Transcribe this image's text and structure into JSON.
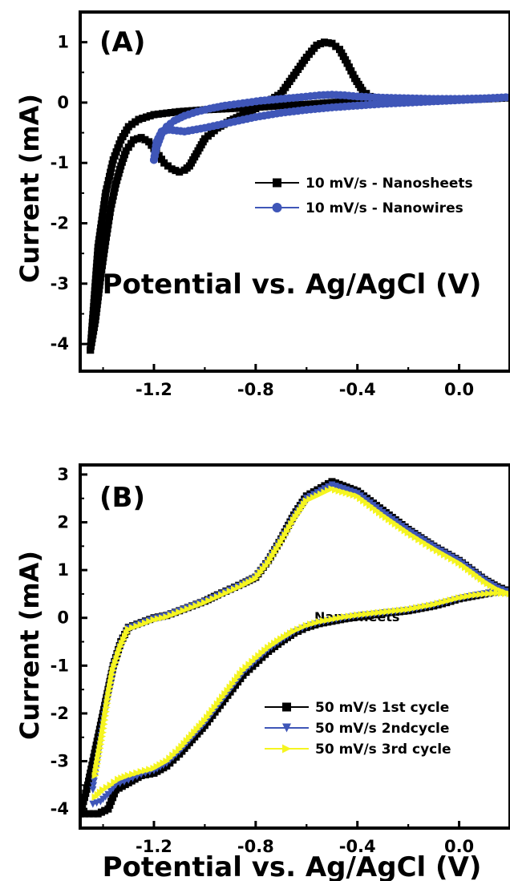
{
  "chart_data": [
    {
      "type": "line",
      "panel_label": "(A)",
      "xlabel": "Potential vs. Ag/AgCl (V)",
      "ylabel": "Current (mA)",
      "xlim": [
        -1.49,
        0.2
      ],
      "ylim": [
        -4.45,
        1.5
      ],
      "xticks": [
        -1.2,
        -0.8,
        -0.4,
        0.0
      ],
      "xtick_labels": [
        "-1.2",
        "-0.8",
        "-0.4",
        "0.0"
      ],
      "yticks": [
        -4,
        -3,
        -2,
        -1,
        0,
        1
      ],
      "ytick_labels": [
        "-4",
        "-3",
        "-2",
        "-1",
        "0",
        "1"
      ],
      "grid": false,
      "legend_position": "middle-right",
      "series": [
        {
          "name": "10 mV/s - Nanosheets",
          "color": "#000000",
          "marker": "square",
          "x": [
            -1.45,
            -1.43,
            -1.41,
            -1.39,
            -1.37,
            -1.35,
            -1.33,
            -1.31,
            -1.28,
            -1.25,
            -1.22,
            -1.19,
            -1.16,
            -1.13,
            -1.1,
            -1.08,
            -1.06,
            -1.04,
            -1.02,
            -1.0,
            -0.95,
            -0.9,
            -0.85,
            -0.8,
            -0.75,
            -0.7,
            -0.65,
            -0.6,
            -0.56,
            -0.53,
            -0.5,
            -0.47,
            -0.44,
            -0.41,
            -0.38,
            -0.35,
            -0.3,
            -0.25,
            -0.2,
            -0.1,
            0.0,
            0.1,
            0.2,
            0.1,
            0.0,
            -0.1,
            -0.2,
            -0.3,
            -0.4,
            -0.5,
            -0.6,
            -0.7,
            -0.8,
            -0.9,
            -1.0,
            -1.1,
            -1.2,
            -1.26,
            -1.3,
            -1.33,
            -1.36,
            -1.39,
            -1.42,
            -1.45
          ],
          "y": [
            -4.1,
            -3.6,
            -2.9,
            -2.3,
            -1.75,
            -1.35,
            -1.05,
            -0.8,
            -0.62,
            -0.58,
            -0.65,
            -0.82,
            -1.0,
            -1.1,
            -1.15,
            -1.12,
            -1.05,
            -0.9,
            -0.75,
            -0.6,
            -0.42,
            -0.3,
            -0.2,
            -0.1,
            0.02,
            0.15,
            0.45,
            0.75,
            0.95,
            1.0,
            0.98,
            0.88,
            0.65,
            0.4,
            0.2,
            0.1,
            0.05,
            0.04,
            0.04,
            0.05,
            0.05,
            0.06,
            0.08,
            0.06,
            0.05,
            0.04,
            0.04,
            0.03,
            0.02,
            0.0,
            -0.03,
            -0.05,
            -0.08,
            -0.1,
            -0.12,
            -0.15,
            -0.2,
            -0.28,
            -0.4,
            -0.62,
            -0.95,
            -1.5,
            -2.4,
            -4.1
          ]
        },
        {
          "name": "10 mV/s - Nanowires",
          "color": "#3f56b8",
          "marker": "circle",
          "x": [
            -1.2,
            -1.19,
            -1.17,
            -1.15,
            -1.12,
            -1.08,
            -1.03,
            -0.98,
            -0.92,
            -0.85,
            -0.78,
            -0.7,
            -0.62,
            -0.55,
            -0.5,
            -0.45,
            -0.4,
            -0.3,
            -0.2,
            -0.1,
            0.0,
            0.1,
            0.2,
            0.1,
            0.0,
            -0.1,
            -0.2,
            -0.3,
            -0.4,
            -0.5,
            -0.6,
            -0.7,
            -0.8,
            -0.9,
            -1.0,
            -1.08,
            -1.14,
            -1.17,
            -1.19,
            -1.2
          ],
          "y": [
            -0.95,
            -0.75,
            -0.52,
            -0.4,
            -0.3,
            -0.22,
            -0.15,
            -0.1,
            -0.05,
            -0.01,
            0.03,
            0.06,
            0.09,
            0.12,
            0.13,
            0.12,
            0.1,
            0.08,
            0.07,
            0.06,
            0.06,
            0.07,
            0.09,
            0.06,
            0.04,
            0.02,
            0.0,
            -0.02,
            -0.05,
            -0.08,
            -0.12,
            -0.17,
            -0.24,
            -0.33,
            -0.42,
            -0.48,
            -0.45,
            -0.48,
            -0.65,
            -0.95
          ]
        }
      ]
    },
    {
      "type": "line",
      "panel_label": "(B)",
      "xlabel": "Potential vs. Ag/AgCl (V)",
      "ylabel": "Current (mA)",
      "annotation": "Nanosheets",
      "xlim": [
        -1.49,
        0.2
      ],
      "ylim": [
        -4.4,
        3.2
      ],
      "xticks": [
        -1.2,
        -0.8,
        -0.4,
        0.0
      ],
      "xtick_labels": [
        "-1.2",
        "-0.8",
        "-0.4",
        "0.0"
      ],
      "yticks": [
        -4,
        -3,
        -2,
        -1,
        0,
        1,
        2,
        3
      ],
      "ytick_labels": [
        "-4",
        "-3",
        "-2",
        "-1",
        "0",
        "1",
        "2",
        "3"
      ],
      "grid": false,
      "legend_position": "bottom-right",
      "series": [
        {
          "name": "50 mV/s 1st cycle",
          "color": "#000000",
          "marker": "square",
          "x": [
            -1.49,
            -1.42,
            -1.38,
            -1.35,
            -1.3,
            -1.25,
            -1.2,
            -1.15,
            -1.1,
            -1.05,
            -1.0,
            -0.95,
            -0.9,
            -0.85,
            -0.8,
            -0.75,
            -0.7,
            -0.65,
            -0.6,
            -0.55,
            -0.5,
            -0.45,
            -0.4,
            -0.35,
            -0.3,
            -0.25,
            -0.2,
            -0.15,
            -0.1,
            -0.05,
            0.0,
            0.05,
            0.1,
            0.15,
            0.2,
            0.15,
            0.1,
            0.05,
            0.0,
            -0.1,
            -0.2,
            -0.3,
            -0.4,
            -0.5,
            -0.6,
            -0.65,
            -0.7,
            -0.75,
            -0.8,
            -0.85,
            -0.9,
            -0.95,
            -1.0,
            -1.05,
            -1.1,
            -1.15,
            -1.2,
            -1.25,
            -1.3,
            -1.33,
            -1.36,
            -1.38,
            -1.4,
            -1.42,
            -1.44,
            -1.46,
            -1.49
          ],
          "y": [
            -4.1,
            -4.1,
            -4.0,
            -3.6,
            -3.45,
            -3.3,
            -3.25,
            -3.1,
            -2.85,
            -2.55,
            -2.25,
            -1.9,
            -1.55,
            -1.2,
            -0.95,
            -0.7,
            -0.5,
            -0.32,
            -0.2,
            -0.12,
            -0.07,
            -0.02,
            0.02,
            0.05,
            0.1,
            0.12,
            0.15,
            0.2,
            0.25,
            0.32,
            0.4,
            0.45,
            0.5,
            0.55,
            0.55,
            0.65,
            0.8,
            1.0,
            1.2,
            1.5,
            1.85,
            2.25,
            2.65,
            2.85,
            2.55,
            2.15,
            1.65,
            1.2,
            0.85,
            0.72,
            0.6,
            0.48,
            0.35,
            0.25,
            0.15,
            0.05,
            0.0,
            -0.1,
            -0.2,
            -0.5,
            -1.0,
            -1.5,
            -2.0,
            -2.5,
            -3.0,
            -3.5,
            -4.1
          ]
        },
        {
          "name": "50 mV/s  2ndcycle",
          "color": "#3f56b8",
          "marker": "triangle-down",
          "x": [
            -1.44,
            -1.41,
            -1.38,
            -1.35,
            -1.3,
            -1.25,
            -1.2,
            -1.15,
            -1.1,
            -1.05,
            -1.0,
            -0.95,
            -0.9,
            -0.85,
            -0.8,
            -0.75,
            -0.7,
            -0.65,
            -0.6,
            -0.55,
            -0.5,
            -0.45,
            -0.4,
            -0.35,
            -0.3,
            -0.25,
            -0.2,
            -0.15,
            -0.1,
            -0.05,
            0.0,
            0.05,
            0.1,
            0.15,
            0.2,
            0.15,
            0.1,
            0.05,
            0.0,
            -0.1,
            -0.2,
            -0.3,
            -0.4,
            -0.5,
            -0.6,
            -0.65,
            -0.7,
            -0.75,
            -0.8,
            -0.85,
            -0.9,
            -0.95,
            -1.0,
            -1.05,
            -1.1,
            -1.15,
            -1.2,
            -1.25,
            -1.3,
            -1.33,
            -1.36,
            -1.38,
            -1.4,
            -1.42,
            -1.44
          ],
          "y": [
            -3.9,
            -3.85,
            -3.7,
            -3.5,
            -3.4,
            -3.28,
            -3.2,
            -3.05,
            -2.8,
            -2.5,
            -2.2,
            -1.85,
            -1.5,
            -1.15,
            -0.9,
            -0.66,
            -0.47,
            -0.3,
            -0.18,
            -0.1,
            -0.05,
            0.0,
            0.04,
            0.07,
            0.1,
            0.13,
            0.16,
            0.21,
            0.26,
            0.33,
            0.4,
            0.46,
            0.5,
            0.54,
            0.52,
            0.62,
            0.78,
            0.98,
            1.18,
            1.48,
            1.82,
            2.2,
            2.6,
            2.78,
            2.5,
            2.1,
            1.62,
            1.18,
            0.84,
            0.7,
            0.58,
            0.46,
            0.34,
            0.24,
            0.14,
            0.04,
            -0.02,
            -0.12,
            -0.22,
            -0.55,
            -1.05,
            -1.6,
            -2.2,
            -2.9,
            -3.6
          ]
        },
        {
          "name": "50 mV/s  3rd cycle",
          "color": "#f5f520",
          "marker": "triangle-right",
          "x": [
            -1.43,
            -1.4,
            -1.37,
            -1.34,
            -1.3,
            -1.25,
            -1.2,
            -1.15,
            -1.1,
            -1.05,
            -1.0,
            -0.95,
            -0.9,
            -0.85,
            -0.8,
            -0.75,
            -0.7,
            -0.65,
            -0.6,
            -0.55,
            -0.5,
            -0.45,
            -0.4,
            -0.35,
            -0.3,
            -0.25,
            -0.2,
            -0.15,
            -0.1,
            -0.05,
            0.0,
            0.05,
            0.1,
            0.15,
            0.2,
            0.15,
            0.1,
            0.05,
            0.0,
            -0.1,
            -0.2,
            -0.3,
            -0.4,
            -0.5,
            -0.6,
            -0.65,
            -0.7,
            -0.75,
            -0.8,
            -0.85,
            -0.9,
            -0.95,
            -1.0,
            -1.05,
            -1.1,
            -1.15,
            -1.2,
            -1.25,
            -1.3,
            -1.33,
            -1.36,
            -1.38,
            -1.4,
            -1.43
          ],
          "y": [
            -3.75,
            -3.6,
            -3.5,
            -3.38,
            -3.3,
            -3.22,
            -3.15,
            -3.0,
            -2.75,
            -2.45,
            -2.15,
            -1.8,
            -1.45,
            -1.1,
            -0.85,
            -0.62,
            -0.44,
            -0.28,
            -0.16,
            -0.08,
            -0.03,
            0.02,
            0.06,
            0.09,
            0.12,
            0.15,
            0.18,
            0.23,
            0.28,
            0.35,
            0.42,
            0.47,
            0.5,
            0.52,
            0.5,
            0.6,
            0.76,
            0.96,
            1.15,
            1.45,
            1.78,
            2.15,
            2.55,
            2.7,
            2.45,
            2.05,
            1.58,
            1.15,
            0.82,
            0.68,
            0.56,
            0.44,
            0.32,
            0.22,
            0.12,
            0.02,
            -0.04,
            -0.14,
            -0.24,
            -0.6,
            -1.1,
            -1.7,
            -2.4,
            -3.3
          ]
        }
      ]
    }
  ]
}
